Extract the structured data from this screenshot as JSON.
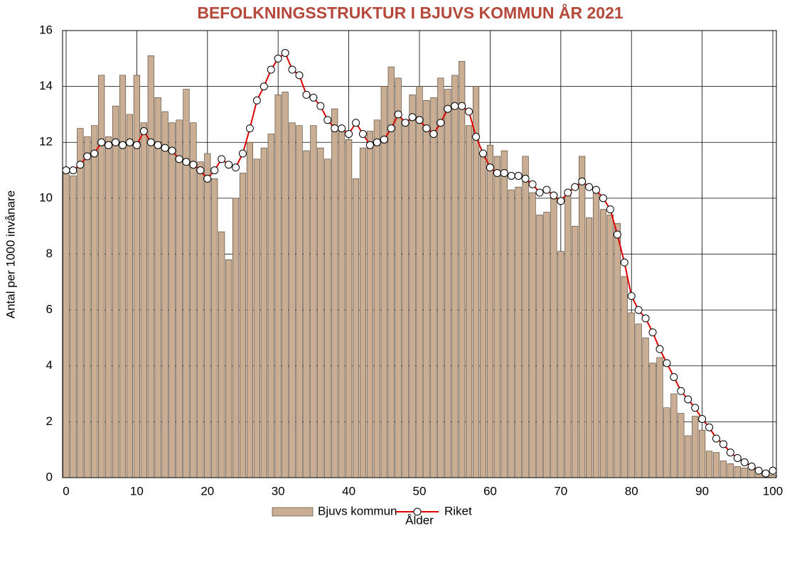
{
  "chart_data": {
    "type": "bar",
    "title": "BEFOLKNINGSSTRUKTUR I BJUVS KOMMUN ÅR 2021",
    "x_label": "Ålder",
    "y_label": "Antal per 1000 invånare",
    "x": [
      0,
      1,
      2,
      3,
      4,
      5,
      6,
      7,
      8,
      9,
      10,
      11,
      12,
      13,
      14,
      15,
      16,
      17,
      18,
      19,
      20,
      21,
      22,
      23,
      24,
      25,
      26,
      27,
      28,
      29,
      30,
      31,
      32,
      33,
      34,
      35,
      36,
      37,
      38,
      39,
      40,
      41,
      42,
      43,
      44,
      45,
      46,
      47,
      48,
      49,
      50,
      51,
      52,
      53,
      54,
      55,
      56,
      57,
      58,
      59,
      60,
      61,
      62,
      63,
      64,
      65,
      66,
      67,
      68,
      69,
      70,
      71,
      72,
      73,
      74,
      75,
      76,
      77,
      78,
      79,
      80,
      81,
      82,
      83,
      84,
      85,
      86,
      87,
      88,
      89,
      90,
      91,
      92,
      93,
      94,
      95,
      96,
      97,
      98,
      99,
      100
    ],
    "xlim": [
      -0.5,
      100.5
    ],
    "xticks": [
      0,
      10,
      20,
      30,
      40,
      50,
      60,
      70,
      80,
      90,
      100
    ],
    "ylim": [
      0,
      16
    ],
    "yticks": [
      0,
      2,
      4,
      6,
      8,
      10,
      12,
      14,
      16
    ],
    "grid": true,
    "legend": "bottom",
    "series": [
      {
        "name": "Bjuvs kommun",
        "type": "bar",
        "color": "#c9ae93",
        "values": [
          11.0,
          10.8,
          12.5,
          12.2,
          12.6,
          14.4,
          12.2,
          13.3,
          14.4,
          13.0,
          14.4,
          12.7,
          15.1,
          13.6,
          13.1,
          12.7,
          12.8,
          13.9,
          12.7,
          11.3,
          11.6,
          10.7,
          8.8,
          7.8,
          10.0,
          10.9,
          12.0,
          11.4,
          11.8,
          12.3,
          13.7,
          13.8,
          12.7,
          12.6,
          11.7,
          12.6,
          11.8,
          11.4,
          13.2,
          12.5,
          12.1,
          10.7,
          11.8,
          12.4,
          12.8,
          14.0,
          14.7,
          14.3,
          12.8,
          13.7,
          14.0,
          13.5,
          13.6,
          14.3,
          13.9,
          14.4,
          14.9,
          12.6,
          14.0,
          11.6,
          11.9,
          11.5,
          11.7,
          10.3,
          10.4,
          11.5,
          10.2,
          9.4,
          9.5,
          10.1,
          8.1,
          10.2,
          9.0,
          11.5,
          9.3,
          10.2,
          9.6,
          9.4,
          9.1,
          7.2,
          5.9,
          5.5,
          5.0,
          4.1,
          4.3,
          2.5,
          3.0,
          2.3,
          1.5,
          2.2,
          1.7,
          0.95,
          0.9,
          0.6,
          0.5,
          0.4,
          0.35,
          0.3,
          0.2,
          0.1,
          0.1
        ]
      },
      {
        "name": "Riket",
        "type": "line",
        "color": "#e00000",
        "values": [
          11.0,
          11.0,
          11.2,
          11.5,
          11.6,
          12.0,
          11.9,
          12.0,
          11.9,
          12.0,
          11.9,
          12.4,
          12.0,
          11.9,
          11.8,
          11.7,
          11.4,
          11.3,
          11.2,
          11.0,
          10.7,
          11.0,
          11.4,
          11.2,
          11.1,
          11.6,
          12.5,
          13.5,
          14.0,
          14.6,
          15.0,
          15.2,
          14.6,
          14.4,
          13.7,
          13.6,
          13.3,
          12.8,
          12.5,
          12.5,
          12.3,
          12.7,
          12.3,
          11.9,
          12.0,
          12.1,
          12.5,
          13.0,
          12.7,
          12.9,
          12.8,
          12.5,
          12.3,
          12.7,
          13.2,
          13.3,
          13.3,
          13.1,
          12.2,
          11.6,
          11.1,
          10.9,
          10.9,
          10.8,
          10.8,
          10.7,
          10.5,
          10.2,
          10.3,
          10.1,
          9.9,
          10.2,
          10.4,
          10.6,
          10.4,
          10.3,
          10.0,
          9.6,
          8.7,
          7.7,
          6.5,
          6.0,
          5.7,
          5.2,
          4.6,
          4.1,
          3.6,
          3.1,
          2.8,
          2.5,
          2.1,
          1.8,
          1.4,
          1.2,
          0.9,
          0.7,
          0.55,
          0.4,
          0.25,
          0.15,
          0.25
        ]
      }
    ]
  }
}
